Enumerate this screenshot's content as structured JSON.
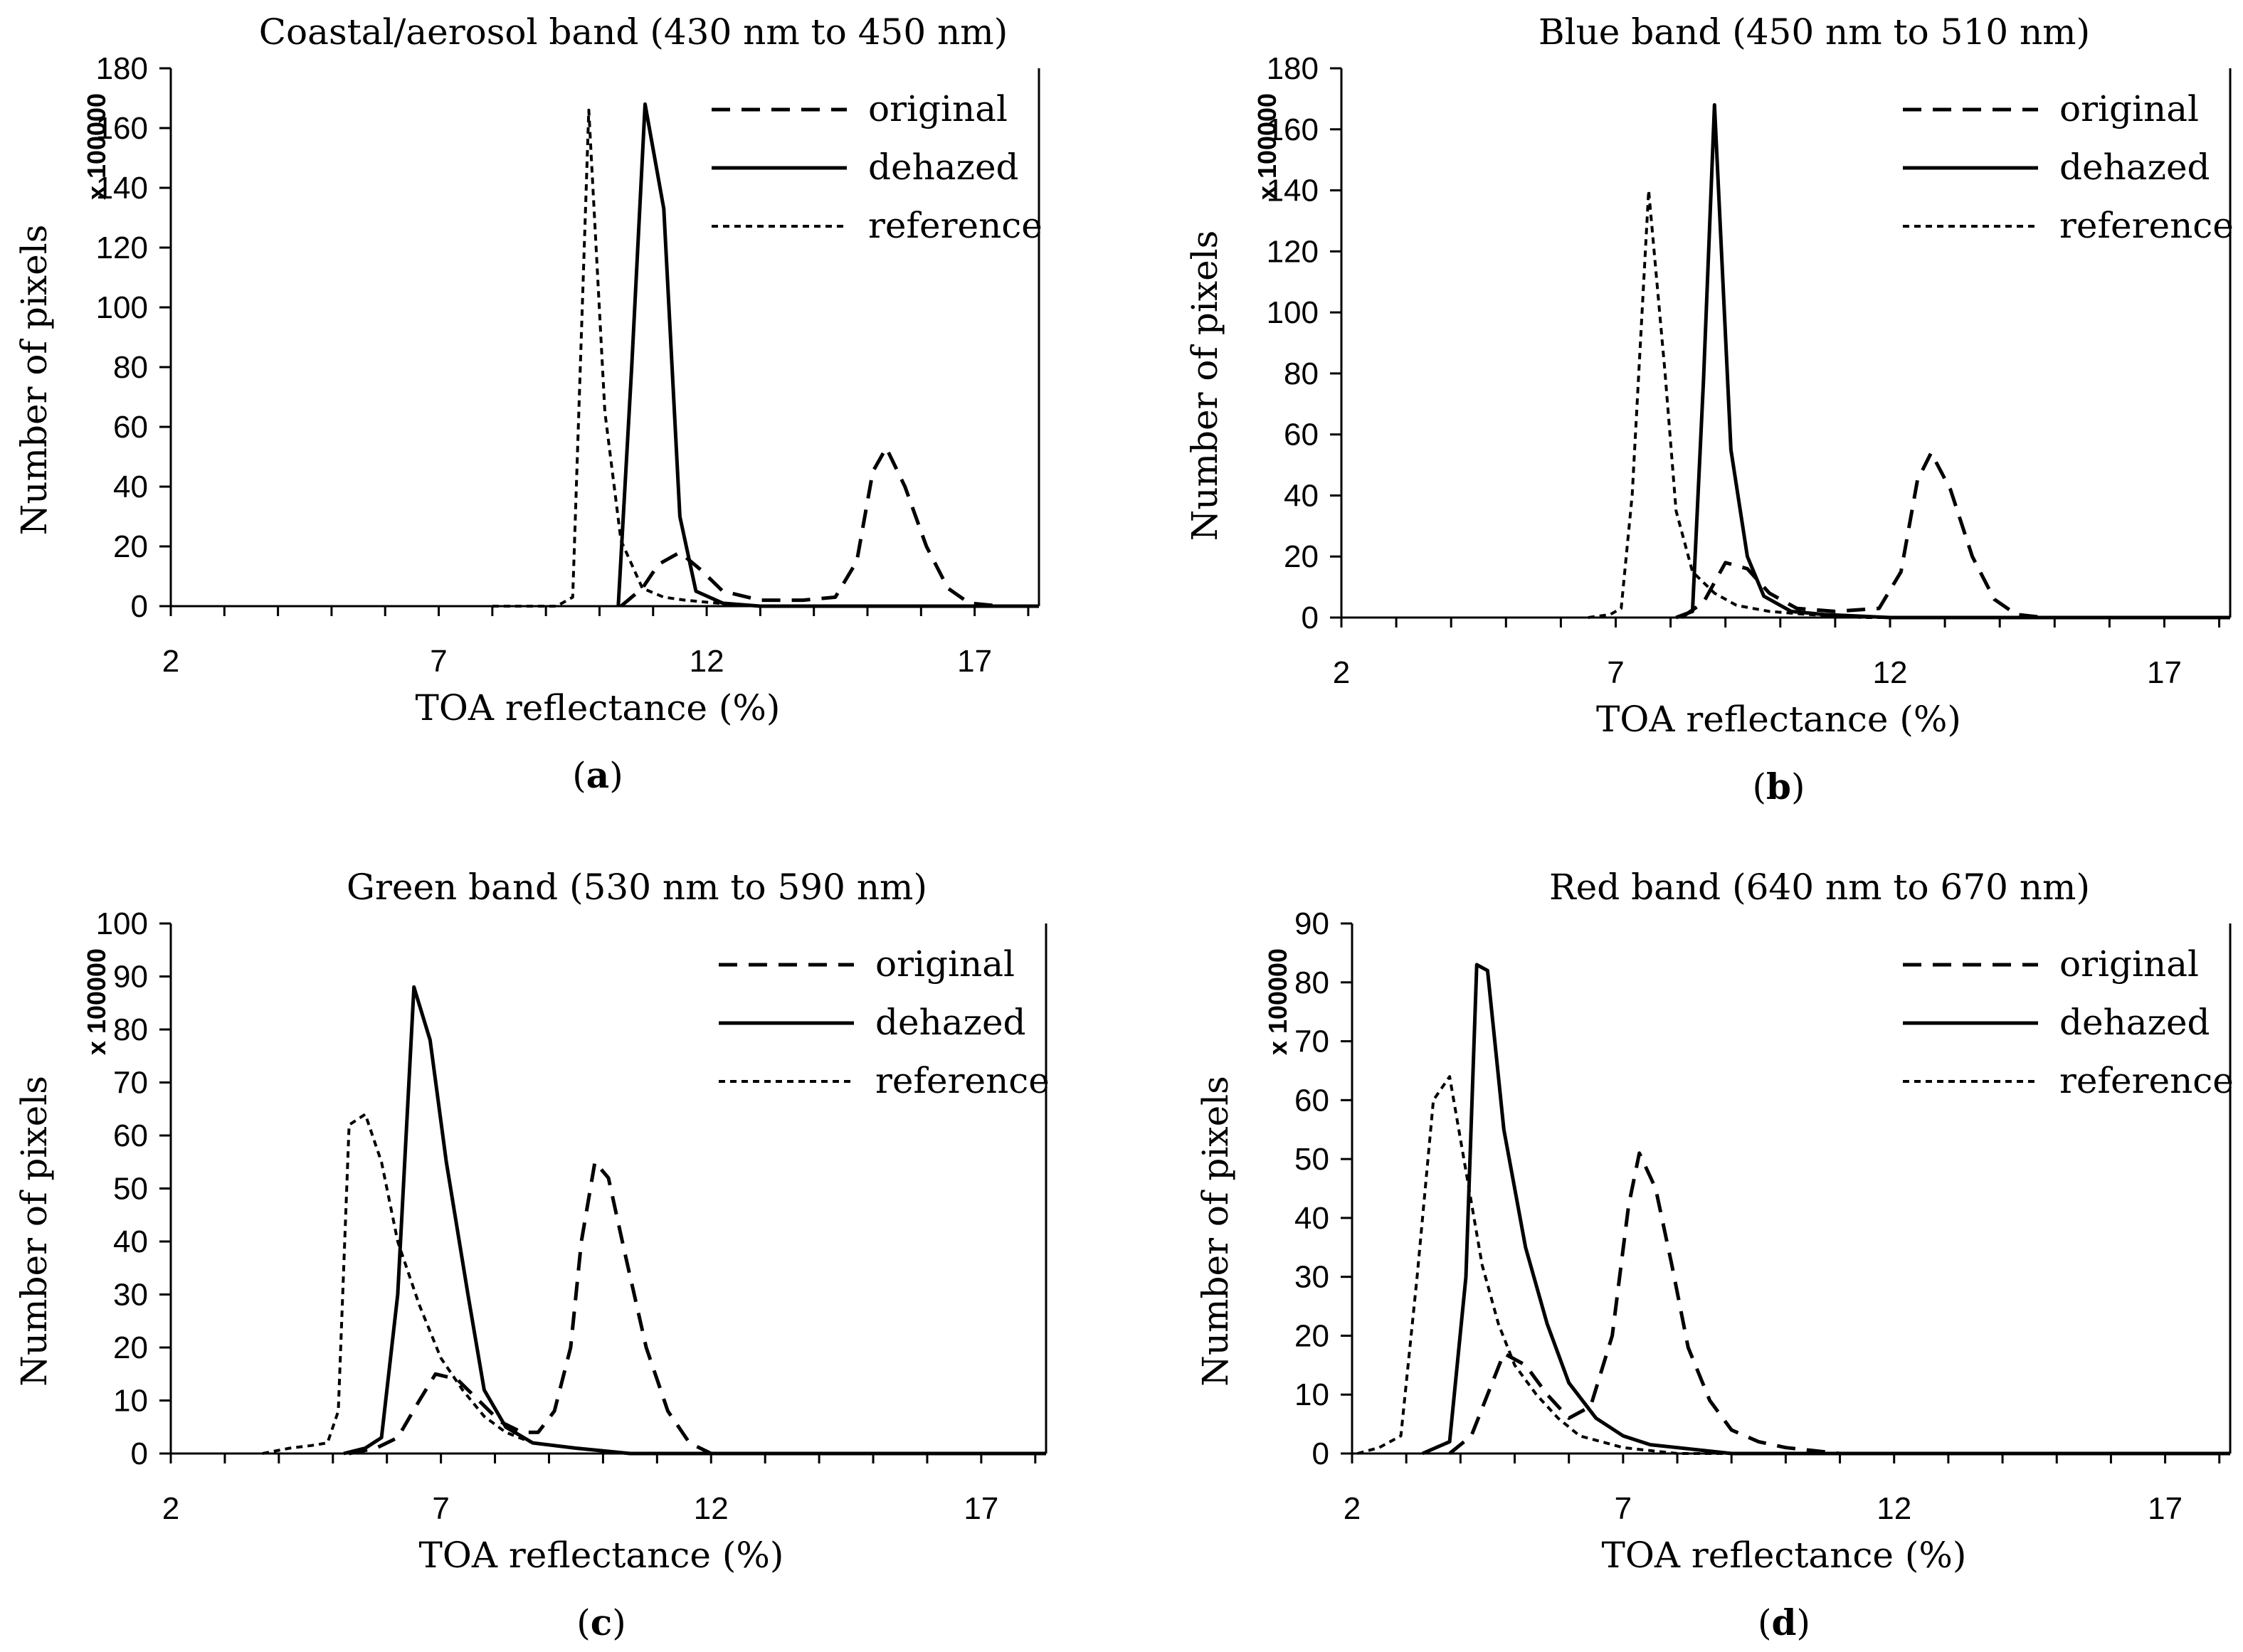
{
  "figure": {
    "styles": {
      "original": {
        "dash": "26,16",
        "width": 5
      },
      "dehazed": {
        "dash": "",
        "width": 5
      },
      "reference": {
        "dash": "9,7",
        "width": 4
      }
    }
  },
  "chart_data": [
    {
      "type": "line",
      "panel": "a",
      "panel_label": "a",
      "title": "Coastal/aerosol band (430 nm to 450 nm)",
      "xlabel": "TOA reflectance (%)",
      "ylabel": "Number of pixels",
      "y_scale_label": "x 100000",
      "xlim": [
        2,
        18.2
      ],
      "ylim": [
        0,
        180
      ],
      "xticks": [
        2,
        7,
        12,
        17
      ],
      "yticks": [
        0,
        20,
        40,
        60,
        80,
        100,
        120,
        140,
        160,
        180
      ],
      "grid": false,
      "legend_position": "top-right",
      "series": [
        {
          "name": "original",
          "x": [
            10.4,
            10.8,
            11.1,
            11.5,
            11.9,
            12.3,
            13.0,
            13.8,
            14.4,
            14.8,
            15.1,
            15.35,
            15.7,
            16.1,
            16.5,
            16.9,
            17.5,
            18.2
          ],
          "y": [
            0,
            6,
            14,
            18,
            12,
            5,
            2,
            2,
            3,
            15,
            45,
            53,
            40,
            20,
            6,
            1,
            0,
            0
          ]
        },
        {
          "name": "dehazed",
          "x": [
            10.35,
            10.6,
            10.85,
            11.2,
            11.5,
            11.8,
            12.3,
            13.0,
            14.0,
            18.2
          ],
          "y": [
            0,
            80,
            168,
            133,
            30,
            5,
            1,
            0,
            0,
            0
          ]
        },
        {
          "name": "reference",
          "x": [
            8.0,
            9.2,
            9.5,
            9.8,
            10.1,
            10.4,
            10.8,
            11.2,
            11.6,
            12.2,
            13.0,
            18.2
          ],
          "y": [
            0,
            0,
            3,
            166,
            65,
            22,
            6,
            3,
            2,
            1,
            0,
            0
          ]
        }
      ]
    },
    {
      "type": "line",
      "panel": "b",
      "panel_label": "b",
      "title": "Blue band (450 nm to 510 nm)",
      "xlabel": "TOA reflectance (%)",
      "ylabel": "Number of pixels",
      "y_scale_label": "x 100000",
      "xlim": [
        2,
        18.2
      ],
      "ylim": [
        0,
        180
      ],
      "xticks": [
        2,
        7,
        12,
        17
      ],
      "yticks": [
        0,
        20,
        40,
        60,
        80,
        100,
        120,
        140,
        160,
        180
      ],
      "grid": false,
      "legend_position": "top-right",
      "series": [
        {
          "name": "original",
          "x": [
            8.2,
            8.6,
            9.0,
            9.4,
            9.8,
            10.3,
            11.0,
            11.8,
            12.2,
            12.5,
            12.75,
            13.1,
            13.5,
            13.9,
            14.3,
            14.8,
            15.5,
            18.2
          ],
          "y": [
            0,
            5,
            18,
            16,
            8,
            3,
            2,
            3,
            15,
            45,
            54,
            42,
            20,
            6,
            1,
            0,
            0,
            0
          ]
        },
        {
          "name": "dehazed",
          "x": [
            8.1,
            8.4,
            8.6,
            8.8,
            9.1,
            9.4,
            9.7,
            10.2,
            10.8,
            12.0,
            18.2
          ],
          "y": [
            0,
            2,
            78,
            168,
            55,
            20,
            7,
            2,
            1,
            0,
            0
          ]
        },
        {
          "name": "reference",
          "x": [
            6.5,
            6.9,
            7.1,
            7.3,
            7.6,
            7.9,
            8.1,
            8.4,
            8.8,
            9.2,
            9.8,
            10.5,
            11.5,
            18.2
          ],
          "y": [
            0,
            1,
            3,
            40,
            140,
            80,
            35,
            15,
            8,
            4,
            2,
            1,
            0,
            0
          ]
        }
      ]
    },
    {
      "type": "line",
      "panel": "c",
      "panel_label": "c",
      "title": "Green band (530 nm to 590 nm)",
      "xlabel": "TOA reflectance (%)",
      "ylabel": "Number of pixels",
      "y_scale_label": "x 100000",
      "xlim": [
        2,
        18.2
      ],
      "ylim": [
        0,
        100
      ],
      "xticks": [
        2,
        7,
        12,
        17
      ],
      "yticks": [
        0,
        10,
        20,
        30,
        40,
        50,
        60,
        70,
        80,
        90,
        100
      ],
      "grid": false,
      "legend_position": "top-right",
      "series": [
        {
          "name": "original",
          "x": [
            5.3,
            5.8,
            6.2,
            6.6,
            6.9,
            7.3,
            7.7,
            8.1,
            8.5,
            8.8,
            9.1,
            9.4,
            9.6,
            9.85,
            10.1,
            10.4,
            10.8,
            11.2,
            11.6,
            12.0,
            18.2
          ],
          "y": [
            0,
            1,
            3,
            10,
            15,
            14,
            10,
            6,
            4,
            4,
            8,
            20,
            40,
            55,
            52,
            38,
            20,
            8,
            2,
            0,
            0
          ]
        },
        {
          "name": "dehazed",
          "x": [
            5.2,
            5.6,
            5.9,
            6.2,
            6.5,
            6.8,
            7.1,
            7.5,
            7.8,
            8.2,
            8.7,
            9.5,
            10.5,
            18.2
          ],
          "y": [
            0,
            1,
            3,
            30,
            88,
            78,
            55,
            30,
            12,
            5,
            2,
            1,
            0,
            0
          ]
        },
        {
          "name": "reference",
          "x": [
            3.7,
            4.2,
            4.6,
            4.9,
            5.1,
            5.3,
            5.6,
            5.9,
            6.2,
            6.6,
            7.0,
            7.4,
            7.8,
            8.2,
            8.7,
            9.5,
            10.5,
            18.2
          ],
          "y": [
            0,
            1,
            1.5,
            2,
            8,
            62,
            64,
            55,
            40,
            28,
            18,
            12,
            7,
            4,
            2,
            1,
            0,
            0
          ]
        }
      ]
    },
    {
      "type": "line",
      "panel": "d",
      "panel_label": "d",
      "title": "Red band (640 nm to 670 nm)",
      "xlabel": "TOA reflectance (%)",
      "ylabel": "Number of pixels",
      "y_scale_label": "x 100000",
      "xlim": [
        2,
        18.2
      ],
      "ylim": [
        0,
        90
      ],
      "xticks": [
        2,
        7,
        12,
        17
      ],
      "yticks": [
        0,
        10,
        20,
        30,
        40,
        50,
        60,
        70,
        80,
        90
      ],
      "grid": false,
      "legend_position": "top-right",
      "series": [
        {
          "name": "original",
          "x": [
            3.8,
            4.2,
            4.5,
            4.8,
            5.2,
            5.6,
            6.0,
            6.4,
            6.8,
            7.1,
            7.3,
            7.6,
            7.9,
            8.2,
            8.6,
            9.0,
            9.5,
            10.0,
            10.5,
            11.0,
            12.0,
            18.2
          ],
          "y": [
            0,
            3,
            10,
            17,
            15,
            10,
            6,
            8,
            20,
            42,
            51,
            45,
            32,
            18,
            9,
            4,
            2,
            1,
            0.5,
            0,
            0,
            0
          ]
        },
        {
          "name": "dehazed",
          "x": [
            3.3,
            3.8,
            4.1,
            4.3,
            4.5,
            4.8,
            5.2,
            5.6,
            6.0,
            6.5,
            7.0,
            7.5,
            8.0,
            9.0,
            18.2
          ],
          "y": [
            0,
            2,
            30,
            83,
            82,
            55,
            35,
            22,
            12,
            6,
            3,
            1.5,
            1,
            0,
            0
          ]
        },
        {
          "name": "reference",
          "x": [
            2.1,
            2.5,
            2.9,
            3.2,
            3.5,
            3.8,
            4.1,
            4.4,
            4.7,
            5.0,
            5.4,
            5.8,
            6.2,
            6.6,
            7.0,
            7.5,
            8.0,
            9.0,
            18.2
          ],
          "y": [
            0,
            1,
            3,
            30,
            60,
            64,
            48,
            32,
            22,
            15,
            10,
            6,
            3,
            2,
            1,
            0.5,
            0,
            0,
            0
          ]
        }
      ]
    }
  ]
}
